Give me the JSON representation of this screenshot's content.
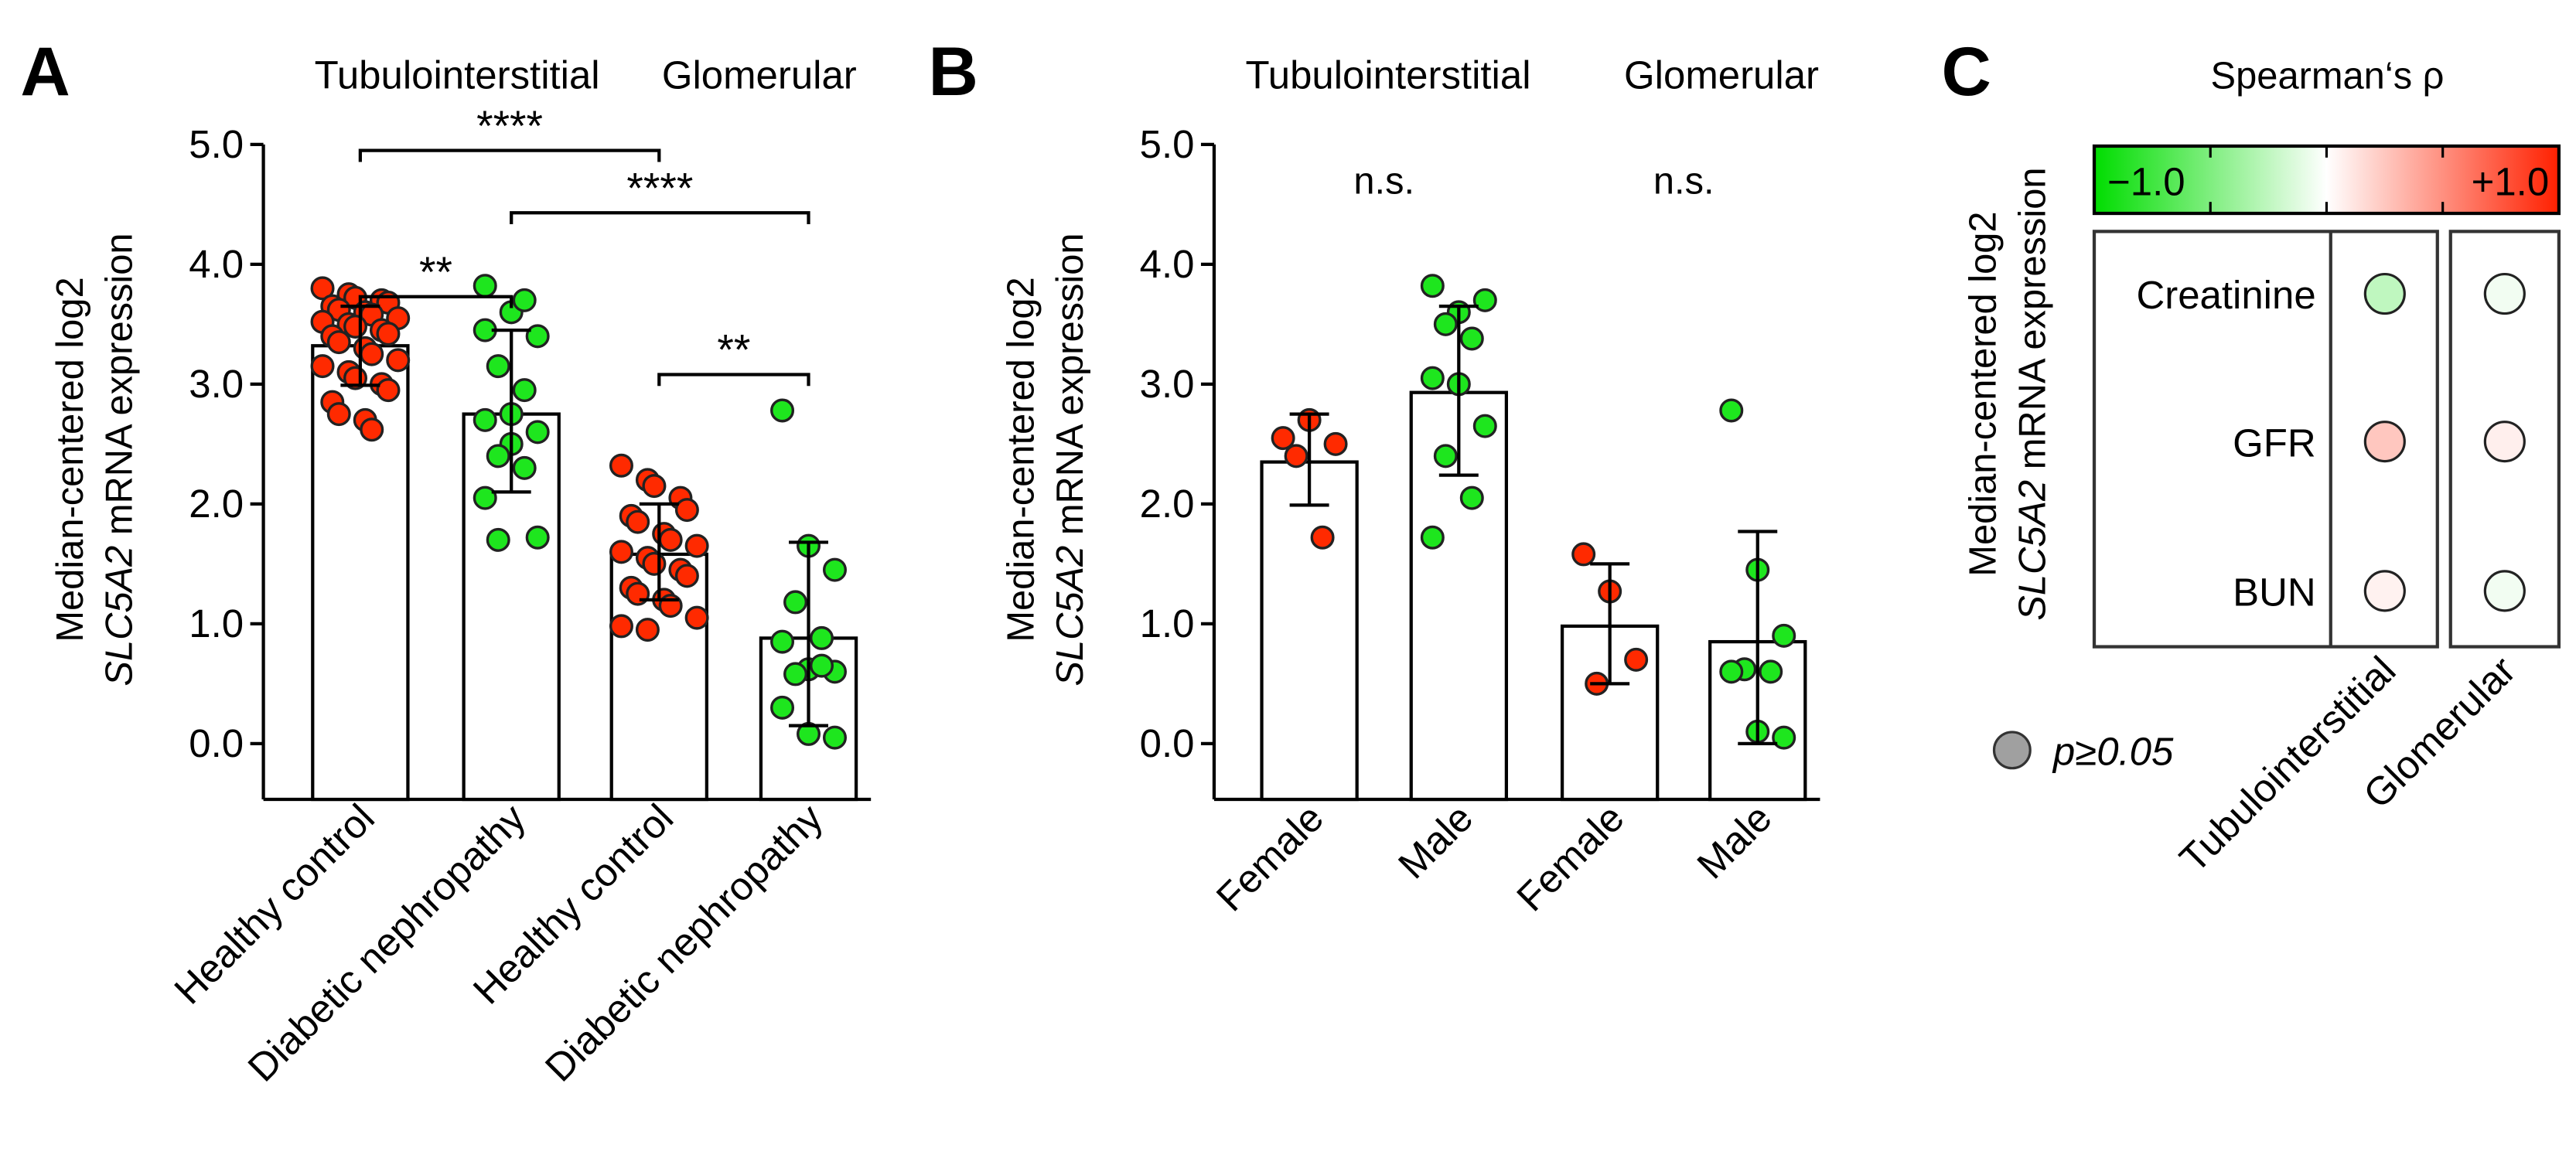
{
  "colors": {
    "red": "#ff2a00",
    "green": "#1ee61e",
    "grey": "#a0a0a0",
    "neg": "#00dd00",
    "pos": "#ff2000"
  },
  "chart_data": [
    {
      "panel": "A",
      "type": "bar",
      "group_titles": [
        "Tubulointerstitial",
        "Glomerular"
      ],
      "ylabel_line1": "Median-centered log2",
      "ylabel_line2_italic": "SLC5A2",
      "ylabel_line2_rest": " mRNA expression",
      "ylim": [
        0,
        5
      ],
      "yticks": [
        "0.0",
        "1.0",
        "2.0",
        "3.0",
        "4.0",
        "5.0"
      ],
      "categories": [
        "Healthy control",
        "Diabetic nephropathy",
        "Healthy control",
        "Diabetic nephropathy"
      ],
      "bars": [
        {
          "mean": 3.32,
          "err": [
            2.99,
            3.65
          ],
          "color": "red",
          "points": [
            3.8,
            3.75,
            3.72,
            3.7,
            3.68,
            3.65,
            3.62,
            3.6,
            3.58,
            3.55,
            3.52,
            3.5,
            3.48,
            3.45,
            3.42,
            3.4,
            3.35,
            3.3,
            3.25,
            3.2,
            3.15,
            3.1,
            3.05,
            3.0,
            2.95,
            2.85,
            2.75,
            2.7,
            2.62
          ]
        },
        {
          "mean": 2.75,
          "err": [
            2.1,
            3.45
          ],
          "color": "green",
          "points": [
            3.82,
            3.6,
            3.4,
            3.15,
            2.95,
            2.7,
            2.5,
            1.72,
            1.7,
            3.7,
            3.45,
            2.75,
            2.6,
            2.4,
            2.3,
            2.05
          ]
        },
        {
          "mean": 1.58,
          "err": [
            1.2,
            2.0
          ],
          "color": "red",
          "points": [
            2.32,
            2.2,
            2.15,
            2.05,
            1.95,
            1.9,
            1.85,
            1.75,
            1.7,
            1.65,
            1.6,
            1.55,
            1.5,
            1.45,
            1.4,
            1.3,
            1.25,
            1.2,
            1.15,
            1.05,
            0.98,
            0.95
          ]
        },
        {
          "mean": 0.88,
          "err": [
            0.15,
            1.68
          ],
          "color": "green",
          "points": [
            2.78,
            1.65,
            1.45,
            1.18,
            0.88,
            0.85,
            0.62,
            0.6,
            0.58,
            0.65,
            0.3,
            0.08,
            0.05
          ]
        }
      ],
      "significance": [
        {
          "from": 0,
          "to": 2,
          "y": 4.95,
          "label": "****"
        },
        {
          "from": 1,
          "to": 3,
          "y": 4.43,
          "label": "****"
        },
        {
          "from": 0,
          "to": 1,
          "y": 3.73,
          "label": "**"
        },
        {
          "from": 2,
          "to": 3,
          "y": 3.08,
          "label": "**"
        }
      ]
    },
    {
      "panel": "B",
      "type": "bar",
      "group_titles": [
        "Tubulointerstitial",
        "Glomerular"
      ],
      "ylabel_line1": "Median-centered log2",
      "ylabel_line2_italic": "SLC5A2",
      "ylabel_line2_rest": " mRNA expression",
      "ylim": [
        0,
        5
      ],
      "yticks": [
        "0.0",
        "1.0",
        "2.0",
        "3.0",
        "4.0",
        "5.0"
      ],
      "categories": [
        "Female",
        "Male",
        "Female",
        "Male"
      ],
      "bars": [
        {
          "mean": 2.35,
          "err": [
            1.99,
            2.75
          ],
          "color": "red",
          "points": [
            2.55,
            2.7,
            2.5,
            2.4,
            1.72
          ]
        },
        {
          "mean": 2.93,
          "err": [
            2.24,
            3.65
          ],
          "color": "green",
          "points": [
            3.82,
            3.6,
            3.7,
            3.5,
            3.38,
            3.05,
            3.0,
            2.65,
            2.4,
            2.05,
            1.72
          ]
        },
        {
          "mean": 0.98,
          "err": [
            0.5,
            1.5
          ],
          "color": "red",
          "points": [
            1.58,
            1.27,
            0.7,
            0.5
          ]
        },
        {
          "mean": 0.85,
          "err": [
            0.0,
            1.77
          ],
          "color": "green",
          "points": [
            2.78,
            1.45,
            0.9,
            0.62,
            0.6,
            0.6,
            0.1,
            0.05
          ]
        }
      ],
      "annotations": [
        {
          "group": 0,
          "label": "n.s."
        },
        {
          "group": 1,
          "label": "n.s."
        }
      ]
    },
    {
      "panel": "C",
      "type": "heatmap",
      "title": "Spearman‘s ρ",
      "ylabel_line1": "Median-centered log2",
      "ylabel_line2_italic": "SLC5A2",
      "ylabel_line2_rest": " mRNA expression",
      "colorbar": {
        "min_label": "−1.0",
        "max_label": "+1.0",
        "range": [
          -1,
          1
        ]
      },
      "rows": [
        "Creatinine",
        "GFR",
        "BUN"
      ],
      "columns": [
        "Tubulointerstitial",
        "Glomerular"
      ],
      "values": [
        [
          -0.25,
          -0.05
        ],
        [
          0.25,
          0.07
        ],
        [
          0.06,
          -0.05
        ]
      ],
      "legend": "p≥0.05"
    }
  ],
  "panel_letters": [
    "A",
    "B",
    "C"
  ]
}
